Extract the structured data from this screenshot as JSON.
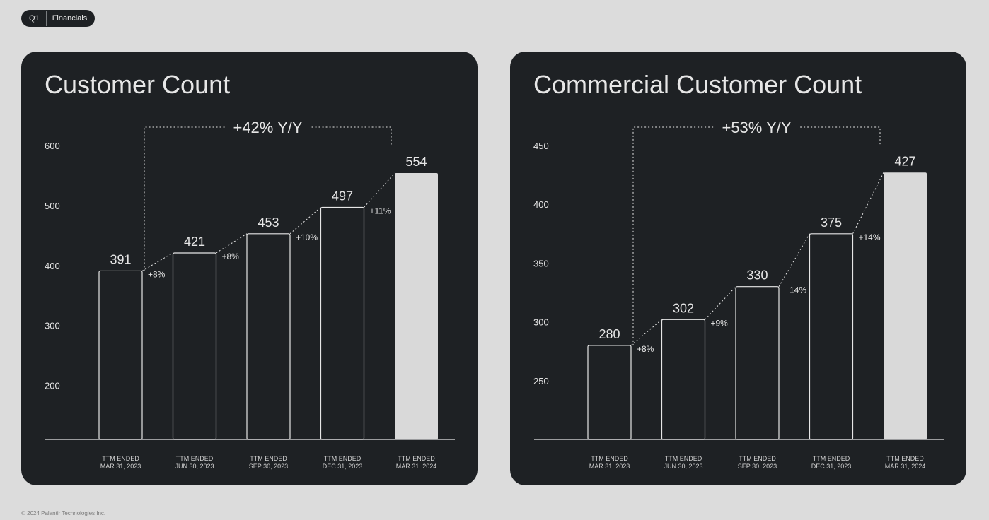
{
  "header": {
    "quarter": "Q1",
    "section": "Financials"
  },
  "footer": "© 2024 Palantir Technologies Inc.",
  "colors": {
    "panel": "#1e2124",
    "background": "#dcdcdc",
    "text": "#e6e6e6",
    "highlight_bar": "#d9d9d9"
  },
  "chart_data": [
    {
      "type": "bar",
      "title": "Customer Count",
      "categories": [
        [
          "TTM ENDED",
          "MAR 31, 2023"
        ],
        [
          "TTM ENDED",
          "JUN 30, 2023"
        ],
        [
          "TTM ENDED",
          "SEP 30, 2023"
        ],
        [
          "TTM ENDED",
          "DEC 31, 2023"
        ],
        [
          "TTM ENDED",
          "MAR 31, 2024"
        ]
      ],
      "values": [
        391,
        421,
        453,
        497,
        554
      ],
      "growth_labels": [
        "+8%",
        "+8%",
        "+10%",
        "+11%"
      ],
      "yoy_label": "+42% Y/Y",
      "yticks": [
        200,
        300,
        400,
        500,
        600
      ],
      "ylim": [
        110,
        600
      ],
      "highlight_last": true,
      "grid": false
    },
    {
      "type": "bar",
      "title": "Commercial Customer Count",
      "categories": [
        [
          "TTM ENDED",
          "MAR 31, 2023"
        ],
        [
          "TTM ENDED",
          "JUN 30, 2023"
        ],
        [
          "TTM ENDED",
          "SEP 30, 2023"
        ],
        [
          "TTM ENDED",
          "DEC 31, 2023"
        ],
        [
          "TTM ENDED",
          "MAR 31, 2024"
        ]
      ],
      "values": [
        280,
        302,
        330,
        375,
        427
      ],
      "growth_labels": [
        "+8%",
        "+9%",
        "+14%",
        "+14%"
      ],
      "yoy_label": "+53% Y/Y",
      "yticks": [
        250,
        300,
        350,
        400,
        450
      ],
      "ylim": [
        200,
        450
      ],
      "highlight_last": true,
      "grid": false
    }
  ]
}
